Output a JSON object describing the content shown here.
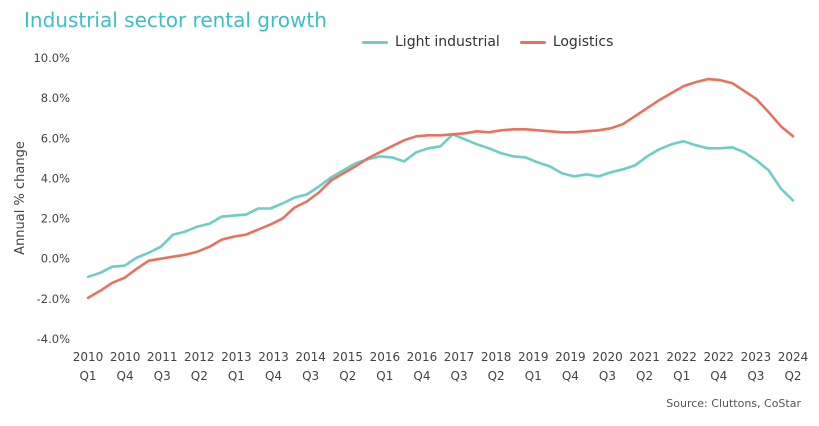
{
  "chart_data": {
    "type": "line",
    "title": "Industrial sector rental growth",
    "xlabel": "",
    "ylabel": "Annual % change",
    "ylim": [
      -4,
      10
    ],
    "yticks": [
      "10.0%",
      "8.0%",
      "6.0%",
      "4.0%",
      "2.0%",
      "0.0%",
      "-2.0%",
      "-4.0%"
    ],
    "ytick_values": [
      10,
      8,
      6,
      4,
      2,
      0,
      -2,
      -4
    ],
    "grid": false,
    "legend": "top-center",
    "x_tick_labels": [
      {
        "year": "2010",
        "q": "Q1"
      },
      {
        "year": "2010",
        "q": "Q4"
      },
      {
        "year": "2011",
        "q": "Q3"
      },
      {
        "year": "2012",
        "q": "Q2"
      },
      {
        "year": "2013",
        "q": "Q1"
      },
      {
        "year": "2013",
        "q": "Q4"
      },
      {
        "year": "2014",
        "q": "Q3"
      },
      {
        "year": "2015",
        "q": "Q2"
      },
      {
        "year": "2016",
        "q": "Q1"
      },
      {
        "year": "2016",
        "q": "Q4"
      },
      {
        "year": "2017",
        "q": "Q3"
      },
      {
        "year": "2018",
        "q": "Q2"
      },
      {
        "year": "2019",
        "q": "Q1"
      },
      {
        "year": "2019",
        "q": "Q4"
      },
      {
        "year": "2020",
        "q": "Q3"
      },
      {
        "year": "2021",
        "q": "Q2"
      },
      {
        "year": "2022",
        "q": "Q1"
      },
      {
        "year": "2022",
        "q": "Q4"
      },
      {
        "year": "2023",
        "q": "Q3"
      },
      {
        "year": "2024",
        "q": "Q2"
      }
    ],
    "series": [
      {
        "name": "Light industrial",
        "color": "#6fcdc4",
        "values": [
          -0.9,
          -0.7,
          -0.4,
          -0.35,
          0.05,
          0.3,
          0.6,
          1.2,
          1.35,
          1.6,
          1.75,
          2.1,
          2.15,
          2.2,
          2.5,
          2.5,
          2.75,
          3.05,
          3.2,
          3.6,
          4.05,
          4.4,
          4.75,
          4.95,
          5.1,
          5.05,
          4.85,
          5.3,
          5.5,
          5.6,
          6.2,
          5.95,
          5.7,
          5.5,
          5.25,
          5.1,
          5.05,
          4.8,
          4.6,
          4.25,
          4.1,
          4.2,
          4.1,
          4.3,
          4.45,
          4.65,
          5.1,
          5.45,
          5.7,
          5.85,
          5.65,
          5.5,
          5.5,
          5.55,
          5.3,
          4.9,
          4.4,
          3.5,
          2.9
        ]
      },
      {
        "name": "Logistics",
        "color": "#e8725f",
        "values": [
          -1.95,
          -1.6,
          -1.2,
          -0.95,
          -0.5,
          -0.1,
          0.0,
          0.1,
          0.2,
          0.35,
          0.6,
          0.95,
          1.1,
          1.2,
          1.45,
          1.7,
          2.0,
          2.55,
          2.85,
          3.3,
          3.9,
          4.25,
          4.6,
          5.0,
          5.3,
          5.6,
          5.9,
          6.1,
          6.15,
          6.15,
          6.2,
          6.25,
          6.35,
          6.3,
          6.4,
          6.45,
          6.45,
          6.4,
          6.35,
          6.3,
          6.3,
          6.35,
          6.4,
          6.5,
          6.7,
          7.1,
          7.5,
          7.9,
          8.25,
          8.6,
          8.8,
          8.95,
          8.9,
          8.75,
          8.35,
          7.95,
          7.3,
          6.6,
          6.1
        ]
      }
    ],
    "source": "Source: Cluttons, CoStar"
  }
}
